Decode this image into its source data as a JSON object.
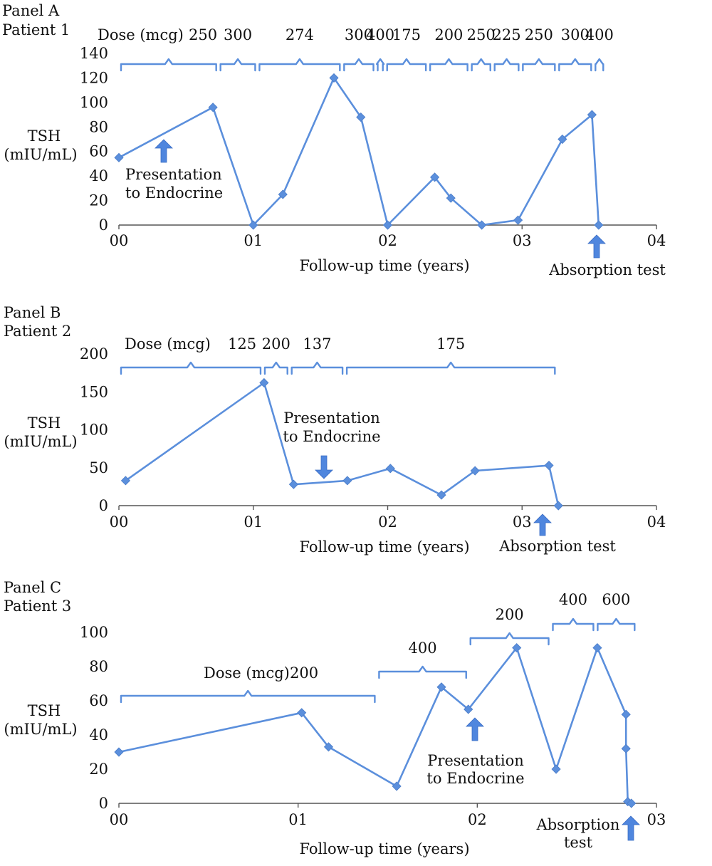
{
  "chart_data": [
    {
      "type": "line",
      "panel_title": "Panel A",
      "patient": "Patient 1",
      "ylabel_line1": "TSH",
      "ylabel_line2": "(mIU/mL)",
      "xlabel": "Follow-up time (years)",
      "xlim": [
        0,
        4
      ],
      "ylim": [
        0,
        140
      ],
      "yticks": [
        0,
        20,
        40,
        60,
        80,
        100,
        120,
        140
      ],
      "xticks": [
        "00",
        "01",
        "02",
        "03",
        "04"
      ],
      "series": [
        {
          "x": [
            0.0,
            0.7,
            1.0,
            1.22,
            1.6,
            1.8,
            2.0,
            2.35,
            2.47,
            2.7,
            2.97,
            3.3,
            3.52,
            3.57
          ],
          "y": [
            55,
            96,
            0,
            25,
            120,
            88,
            0,
            39,
            22,
            0,
            4,
            70,
            90,
            0
          ]
        }
      ],
      "dose_prefix": "Dose (mcg)",
      "doses": [
        {
          "label": "250",
          "start": 0.0,
          "end": 0.74
        },
        {
          "label": "300",
          "start": 0.74,
          "end": 1.03
        },
        {
          "label": "274",
          "start": 1.03,
          "end": 1.66
        },
        {
          "label": "300",
          "start": 1.66,
          "end": 1.91
        },
        {
          "label": "400",
          "start": 1.91,
          "end": 1.98
        },
        {
          "label": "175",
          "start": 1.98,
          "end": 2.3
        },
        {
          "label": "200",
          "start": 2.3,
          "end": 2.61
        },
        {
          "label": "250",
          "start": 2.61,
          "end": 2.78
        },
        {
          "label": "225",
          "start": 2.78,
          "end": 2.99
        },
        {
          "label": "250",
          "start": 2.99,
          "end": 3.26
        },
        {
          "label": "300",
          "start": 3.26,
          "end": 3.53
        },
        {
          "label": "400",
          "start": 3.53,
          "end": 3.62
        }
      ],
      "annotations": [
        {
          "text1": "Presentation",
          "text2": "to Endocrine",
          "x": 0.37,
          "direction": "up"
        },
        {
          "text1": "Absorption test",
          "text2": "",
          "x": 3.57,
          "direction": "up"
        }
      ]
    },
    {
      "type": "line",
      "panel_title": "Panel B",
      "patient": "Patient 2",
      "ylabel_line1": "TSH",
      "ylabel_line2": "(mIU/mL)",
      "xlabel": "Follow-up time (years)",
      "xlim": [
        0,
        4
      ],
      "ylim": [
        0,
        200
      ],
      "yticks": [
        0,
        50,
        100,
        150,
        200
      ],
      "xticks": [
        "00",
        "01",
        "02",
        "03",
        "04"
      ],
      "series": [
        {
          "x": [
            0.05,
            1.08,
            1.3,
            1.7,
            2.02,
            2.4,
            2.65,
            3.2,
            3.27
          ],
          "y": [
            33,
            162,
            28,
            33,
            49,
            14,
            46,
            53,
            0
          ]
        }
      ],
      "dose_prefix": "Dose (mcg)",
      "doses": [
        {
          "label": "125",
          "start": 0.0,
          "end": 1.07
        },
        {
          "label": "200",
          "start": 1.07,
          "end": 1.27
        },
        {
          "label": "137",
          "start": 1.27,
          "end": 1.68
        },
        {
          "label": "175",
          "start": 1.68,
          "end": 3.26
        }
      ],
      "annotations": [
        {
          "text1": "Presentation",
          "text2": "to Endocrine",
          "x": 1.58,
          "direction": "down"
        },
        {
          "text1": "Absorption test",
          "text2": "",
          "x": 3.27,
          "direction": "up"
        }
      ]
    },
    {
      "type": "line",
      "panel_title": "Panel C",
      "patient": "Patient 3",
      "ylabel_line1": "TSH",
      "ylabel_line2": "(mIU/mL)",
      "xlabel": "Follow-up time (years)",
      "xlim": [
        0,
        3
      ],
      "ylim": [
        0,
        100
      ],
      "yticks": [
        0,
        20,
        40,
        60,
        80,
        100
      ],
      "xticks": [
        "00",
        "01",
        "02",
        "03"
      ],
      "series": [
        {
          "x": [
            0.0,
            1.02,
            1.17,
            1.55,
            1.8,
            1.95,
            2.22,
            2.44,
            2.67,
            2.83,
            2.83,
            2.84,
            2.86
          ],
          "y": [
            30,
            53,
            33,
            10,
            68,
            55,
            91,
            20,
            91,
            52,
            32,
            1,
            0
          ]
        }
      ],
      "dose_prefix": "Dose (mcg)",
      "doses": [
        {
          "label": "200",
          "start": 0.0,
          "end": 1.44
        },
        {
          "label": "400",
          "start": 1.44,
          "end": 1.95
        },
        {
          "label": "200",
          "start": 1.95,
          "end": 2.41
        },
        {
          "label": "400",
          "start": 2.41,
          "end": 2.66
        },
        {
          "label": "600",
          "start": 2.66,
          "end": 2.89
        }
      ],
      "annotations": [
        {
          "text1": "Presentation",
          "text2": "to Endocrine",
          "x": 1.98,
          "direction": "up"
        },
        {
          "text1": "Absorption",
          "text2": "test",
          "x": 2.9,
          "direction": "up"
        }
      ]
    }
  ]
}
